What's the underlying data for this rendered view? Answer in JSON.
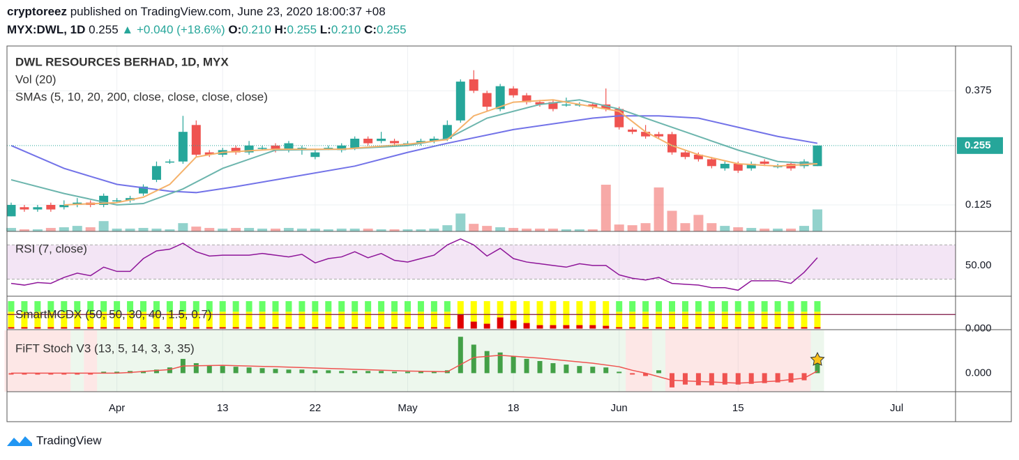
{
  "header": {
    "author": "cryptoreez",
    "published": " published on TradingView.com, June 23, 2020 18:00:37 +08",
    "symbol": "MYX:DWL, 1D",
    "last": "0.255",
    "arrow": "▲",
    "change": "+0.040 (+18.6%)",
    "ohlc": [
      {
        "label": "O:",
        "value": "0.210"
      },
      {
        "label": "H:",
        "value": "0.255"
      },
      {
        "label": "L:",
        "value": "0.210"
      },
      {
        "label": "C:",
        "value": "0.255"
      }
    ]
  },
  "footer": {
    "brand": "TradingView"
  },
  "chart_data": [
    {
      "type": "candlestick",
      "title": "DWL RESOURCES BERHAD, 1D, MYX",
      "categories": [
        null,
        null,
        null,
        null,
        null,
        null,
        null,
        null,
        "Apr",
        null,
        null,
        null,
        null,
        null,
        null,
        null,
        "13",
        null,
        null,
        null,
        null,
        null,
        null,
        "22",
        null,
        null,
        null,
        null,
        null,
        null,
        "May",
        null,
        null,
        null,
        null,
        null,
        null,
        null,
        "18",
        null,
        null,
        null,
        null,
        null,
        null,
        null,
        "Jun",
        null,
        null,
        null,
        null,
        null,
        null,
        null,
        null,
        "15",
        null,
        null,
        null,
        null,
        null,
        null,
        null,
        null,
        null,
        null,
        null,
        "Jul",
        null,
        null,
        null,
        null
      ],
      "open": [
        0.1,
        0.12,
        0.115,
        0.125,
        0.12,
        0.125,
        0.13,
        0.125,
        0.135,
        0.135,
        0.15,
        0.18,
        0.22,
        0.22,
        0.3,
        0.24,
        0.235,
        0.25,
        0.24,
        0.25,
        0.255,
        0.245,
        0.245,
        0.23,
        0.25,
        0.245,
        0.25,
        0.27,
        0.265,
        0.265,
        0.26,
        0.26,
        0.265,
        0.27,
        0.31,
        0.4,
        0.37,
        0.335,
        0.38,
        0.365,
        0.35,
        0.35,
        0.345,
        0.345,
        0.345,
        0.345,
        0.335,
        0.29,
        0.285,
        0.28,
        0.28,
        0.24,
        0.235,
        0.225,
        0.205,
        0.215,
        0.205,
        0.22,
        0.21,
        0.215,
        0.21,
        0.21,
        null,
        null,
        null,
        null,
        null,
        null,
        null,
        null,
        null,
        null
      ],
      "high": [
        0.13,
        0.125,
        0.125,
        0.13,
        0.135,
        0.14,
        0.135,
        0.15,
        0.14,
        0.145,
        0.17,
        0.22,
        0.225,
        0.32,
        0.31,
        0.245,
        0.25,
        0.255,
        0.265,
        0.255,
        0.26,
        0.265,
        0.255,
        0.245,
        0.255,
        0.26,
        0.275,
        0.275,
        0.285,
        0.27,
        0.265,
        0.27,
        0.275,
        0.31,
        0.4,
        0.42,
        0.375,
        0.39,
        0.385,
        0.37,
        0.355,
        0.355,
        0.36,
        0.35,
        0.35,
        0.38,
        0.34,
        0.295,
        0.3,
        0.285,
        0.285,
        0.245,
        0.24,
        0.23,
        0.22,
        0.22,
        0.22,
        0.225,
        0.215,
        0.22,
        0.225,
        0.255,
        null,
        null,
        null,
        null,
        null,
        null,
        null,
        null,
        null,
        null
      ],
      "low": [
        0.1,
        0.11,
        0.11,
        0.11,
        0.115,
        0.12,
        0.12,
        0.12,
        0.13,
        0.13,
        0.145,
        0.175,
        0.215,
        0.215,
        0.23,
        0.23,
        0.23,
        0.235,
        0.235,
        0.245,
        0.24,
        0.24,
        0.235,
        0.225,
        0.245,
        0.24,
        0.245,
        0.255,
        0.26,
        0.255,
        0.255,
        0.255,
        0.26,
        0.265,
        0.305,
        0.37,
        0.33,
        0.33,
        0.36,
        0.345,
        0.34,
        0.33,
        0.34,
        0.34,
        0.335,
        0.33,
        0.29,
        0.28,
        0.27,
        0.27,
        0.235,
        0.225,
        0.22,
        0.205,
        0.2,
        0.195,
        0.2,
        0.21,
        0.205,
        0.2,
        0.205,
        0.21,
        null,
        null,
        null,
        null,
        null,
        null,
        null,
        null,
        null,
        null
      ],
      "close": [
        0.125,
        0.115,
        0.12,
        0.115,
        0.125,
        0.13,
        0.125,
        0.145,
        0.135,
        0.14,
        0.165,
        0.21,
        0.22,
        0.285,
        0.235,
        0.235,
        0.245,
        0.24,
        0.255,
        0.25,
        0.245,
        0.26,
        0.25,
        0.24,
        0.25,
        0.255,
        0.27,
        0.26,
        0.27,
        0.26,
        0.26,
        0.265,
        0.27,
        0.3,
        0.395,
        0.375,
        0.34,
        0.385,
        0.365,
        0.35,
        0.345,
        0.335,
        0.345,
        0.345,
        0.34,
        0.335,
        0.295,
        0.285,
        0.275,
        0.275,
        0.24,
        0.23,
        0.225,
        0.21,
        0.215,
        0.2,
        0.215,
        0.215,
        0.21,
        0.205,
        0.22,
        0.255,
        null,
        null,
        null,
        null,
        null,
        null,
        null,
        null,
        null,
        null
      ],
      "up_color": "#26a69a",
      "down_color": "#ef5350",
      "ylim": [
        0.067,
        0.473
      ],
      "yticks": [
        0.125,
        0.375
      ],
      "grid": true,
      "volume": {
        "name": "Vol (20)",
        "up_color": "rgba(38,166,154,0.5)",
        "down_color": "rgba(239,83,80,0.5)",
        "vlim": [
          0,
          270
        ],
        "values": [
          5,
          3,
          3,
          5,
          6,
          8,
          6,
          15,
          4,
          4,
          5,
          4,
          3,
          12,
          7,
          5,
          4,
          5,
          5,
          4,
          4,
          5,
          4,
          4,
          3,
          4,
          4,
          4,
          3,
          3,
          3,
          3,
          4,
          9,
          26,
          11,
          8,
          6,
          5,
          4,
          4,
          4,
          3,
          3,
          3,
          68,
          10,
          9,
          12,
          64,
          30,
          12,
          24,
          12,
          8,
          6,
          5,
          4,
          4,
          4,
          8,
          32,
          null,
          null,
          null,
          null,
          null,
          null,
          null,
          null,
          null,
          null
        ]
      },
      "sma": {
        "name": "SMAs (5, 10, 20, 200, close, close, close, close)",
        "series": [
          {
            "color": "#7272e8",
            "x": [
              0,
              4,
              8,
              12,
              14,
              17,
              20,
              26,
              30,
              33,
              38,
              44,
              46,
              49,
              52,
              55,
              58,
              61
            ],
            "values": [
              0.255,
              0.205,
              0.17,
              0.155,
              0.152,
              0.165,
              0.18,
              0.21,
              0.24,
              0.26,
              0.29,
              0.315,
              0.32,
              0.32,
              0.315,
              0.295,
              0.275,
              0.26
            ]
          },
          {
            "color": "#6cb5ad",
            "x": [
              0,
              4,
              8,
              10,
              13,
              16,
              20,
              25,
              30,
              33,
              36,
              40,
              43,
              46,
              49,
              52,
              55,
              58,
              61
            ],
            "values": [
              0.18,
              0.15,
              0.125,
              0.128,
              0.16,
              0.205,
              0.245,
              0.247,
              0.255,
              0.27,
              0.315,
              0.345,
              0.355,
              0.335,
              0.305,
              0.275,
              0.245,
              0.22,
              0.215
            ]
          },
          {
            "color": "#f5b26b",
            "x": [
              4,
              8,
              10,
              12,
              14,
              16,
              20,
              25,
              30,
              33,
              35,
              38,
              41,
              44,
              46,
              48,
              50,
              52,
              55,
              58,
              61
            ],
            "values": [
              0.125,
              0.13,
              0.142,
              0.17,
              0.23,
              0.24,
              0.247,
              0.247,
              0.258,
              0.268,
              0.32,
              0.35,
              0.355,
              0.34,
              0.33,
              0.285,
              0.255,
              0.235,
              0.215,
              0.21,
              0.215
            ]
          }
        ]
      }
    },
    {
      "type": "line",
      "title": "RSI (7, close)",
      "color": "#8e1599",
      "band_color": "rgba(156,39,176,0.12)",
      "bands": [
        30,
        70
      ],
      "values": [
        25,
        23,
        26,
        25,
        32,
        37,
        34,
        44,
        39,
        39,
        54,
        63,
        65,
        72,
        62,
        57,
        58,
        58,
        58,
        60,
        58,
        56,
        59,
        49,
        54,
        56,
        62,
        55,
        60,
        52,
        50,
        54,
        58,
        70,
        77,
        70,
        57,
        66,
        54,
        50,
        48,
        46,
        44,
        48,
        46,
        46,
        35,
        31,
        29,
        32,
        25,
        24,
        23,
        20,
        20,
        17,
        28,
        28,
        28,
        25,
        38,
        55
      ],
      "ylim": [
        10,
        85
      ],
      "yticks": [
        {
          "value": 50,
          "label": "50.00"
        }
      ]
    },
    {
      "type": "stacked_bar",
      "title": "SmartMCDX (50, 50, 30, 40, 1.5, 0.7)",
      "series": [
        {
          "color": "#e00000",
          "values": [
            2,
            2,
            2,
            2,
            2,
            2,
            2,
            2,
            2,
            2,
            2,
            2,
            2,
            2,
            2,
            2,
            2,
            2,
            2,
            2,
            2,
            2,
            2,
            2,
            2,
            2,
            2,
            2,
            2,
            2,
            2,
            2,
            2,
            2,
            20,
            10,
            7,
            16,
            12,
            8,
            5,
            5,
            5,
            5,
            5,
            4,
            2,
            2,
            2,
            2,
            2,
            2,
            2,
            2,
            2,
            2,
            2,
            2,
            2,
            2,
            2,
            2
          ]
        },
        {
          "color": "#ffff00",
          "values": [
            22,
            22,
            22,
            22,
            22,
            22,
            22,
            22,
            22,
            22,
            22,
            22,
            22,
            22,
            22,
            22,
            22,
            22,
            22,
            22,
            22,
            22,
            22,
            22,
            22,
            22,
            22,
            22,
            22,
            22,
            22,
            22,
            22,
            22,
            19,
            29,
            32,
            23,
            27,
            31,
            34,
            34,
            34,
            34,
            34,
            35,
            22,
            22,
            22,
            22,
            22,
            22,
            22,
            22,
            22,
            22,
            22,
            22,
            22,
            22,
            22,
            22
          ]
        },
        {
          "color": "#66ff66",
          "values": [
            15,
            15,
            15,
            15,
            15,
            15,
            15,
            15,
            15,
            15,
            15,
            15,
            15,
            15,
            15,
            15,
            15,
            15,
            15,
            15,
            15,
            15,
            15,
            15,
            15,
            15,
            15,
            15,
            15,
            15,
            15,
            15,
            15,
            15,
            0,
            0,
            0,
            0,
            0,
            0,
            0,
            0,
            0,
            0,
            0,
            0,
            15,
            15,
            15,
            15,
            15,
            15,
            15,
            15,
            15,
            15,
            15,
            15,
            15,
            15,
            15,
            15
          ]
        }
      ],
      "level": 20,
      "level_color": "#7a1040",
      "ylim": [
        -1.5,
        45
      ],
      "yticks": [
        {
          "value": 0,
          "label": "0.000"
        }
      ]
    },
    {
      "type": "bar",
      "title": "FiFT Stoch V3 (13, 5, 14, 3, 3, 35)",
      "up_color": "#43a047",
      "down_color": "#ef5350",
      "values": [
        -2,
        -2,
        -2,
        -2,
        -2,
        -2,
        -2,
        2,
        2,
        3,
        3,
        5,
        8,
        20,
        14,
        11,
        10,
        9,
        8,
        7,
        6,
        5,
        5,
        4,
        4,
        3,
        3,
        3,
        3,
        2,
        2,
        2,
        2,
        4,
        51,
        40,
        31,
        29,
        24,
        20,
        17,
        14,
        12,
        10,
        9,
        8,
        2,
        -2,
        -4,
        4,
        -20,
        -16,
        -17,
        -17,
        -16,
        -16,
        -15,
        -14,
        -13,
        -13,
        -10,
        16
      ],
      "signal": {
        "color": "#ef5350",
        "x": [
          0,
          8,
          9,
          12,
          13,
          16,
          20,
          25,
          30,
          33,
          34,
          35,
          37,
          40,
          44,
          46,
          47,
          48,
          50,
          55,
          58,
          60,
          61
        ],
        "values": [
          0,
          0,
          1,
          5,
          10,
          11,
          9,
          6,
          3,
          2,
          12,
          22,
          25,
          21,
          14,
          9,
          4,
          0,
          -10,
          -14,
          -11,
          -7,
          3
        ]
      },
      "zones": [
        {
          "start": 0,
          "end": 4,
          "color": "rgba(239,83,80,0.14)"
        },
        {
          "start": 5,
          "end": 5,
          "color": "rgba(76,175,80,0.1)"
        },
        {
          "start": 6,
          "end": 6,
          "color": "rgba(239,83,80,0.14)"
        },
        {
          "start": 7,
          "end": 46,
          "color": "rgba(76,175,80,0.1)"
        },
        {
          "start": 47,
          "end": 48,
          "color": "rgba(239,83,80,0.14)"
        },
        {
          "start": 49,
          "end": 49,
          "color": "rgba(76,175,80,0.1)"
        },
        {
          "start": 50,
          "end": 60,
          "color": "rgba(239,83,80,0.14)"
        },
        {
          "start": 61,
          "end": 61,
          "color": "rgba(76,175,80,0.1)"
        }
      ],
      "ylim": [
        -26,
        60
      ],
      "yticks": [
        {
          "value": 0,
          "label": "0.000"
        }
      ]
    }
  ]
}
